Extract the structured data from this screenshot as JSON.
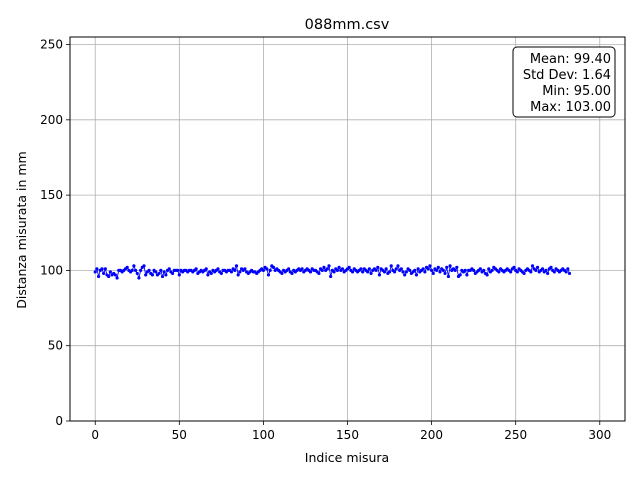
{
  "chart_data": {
    "type": "scatter",
    "title": "088mm.csv",
    "xlabel": "Indice misura",
    "ylabel": "Distanza misurata in mm",
    "xlim": [
      -15,
      315
    ],
    "ylim": [
      0,
      255
    ],
    "xticks": [
      0,
      50,
      100,
      150,
      200,
      250,
      300
    ],
    "yticks": [
      0,
      50,
      100,
      150,
      200,
      250
    ],
    "grid": true,
    "marker_color": "#0000ff",
    "line_color": "#0000ff",
    "stats_box": {
      "position": "top-right",
      "lines": [
        "Mean: 99.40",
        "Std Dev: 1.64",
        "Min: 95.00",
        "Max: 103.00"
      ]
    },
    "series": [
      {
        "x_start": 0,
        "x_step": 1,
        "values": [
          99,
          101,
          96,
          100,
          101,
          98,
          101,
          97,
          96,
          99,
          97,
          98,
          97,
          95,
          100,
          100,
          99,
          100,
          101,
          102,
          100,
          99,
          100,
          103,
          100,
          98,
          95,
          100,
          102,
          103,
          97,
          99,
          100,
          98,
          97,
          100,
          99,
          97,
          98,
          100,
          96,
          99,
          97,
          100,
          101,
          99,
          98,
          100,
          100,
          100,
          97,
          100,
          99,
          100,
          100,
          99,
          100,
          100,
          99,
          100,
          101,
          98,
          99,
          100,
          99,
          100,
          101,
          97,
          99,
          98,
          100,
          99,
          100,
          101,
          99,
          98,
          100,
          100,
          99,
          100,
          100,
          99,
          101,
          100,
          103,
          97,
          99,
          101,
          100,
          101,
          99,
          98,
          99,
          100,
          99,
          99,
          98,
          99,
          100,
          101,
          100,
          102,
          101,
          97,
          100,
          103,
          102,
          100,
          101,
          100,
          99,
          98,
          100,
          99,
          100,
          101,
          99,
          98,
          100,
          99,
          100,
          101,
          100,
          101,
          99,
          100,
          101,
          100,
          99,
          101,
          100,
          100,
          99,
          98,
          101,
          100,
          102,
          100,
          101,
          103,
          96,
          100,
          99,
          101,
          100,
          102,
          100,
          101,
          99,
          100,
          101,
          102,
          100,
          99,
          101,
          100,
          99,
          100,
          101,
          99,
          101,
          100,
          99,
          101,
          98,
          100,
          101,
          100,
          102,
          97,
          101,
          100,
          99,
          101,
          98,
          99,
          103,
          100,
          99,
          101,
          103,
          100,
          101,
          99,
          97,
          99,
          101,
          100,
          98,
          99,
          100,
          97,
          101,
          99,
          100,
          101,
          99,
          102,
          101,
          103,
          100,
          98,
          101,
          100,
          102,
          99,
          101,
          100,
          98,
          102,
          96,
          103,
          100,
          101,
          100,
          102,
          96,
          97,
          100,
          99,
          100,
          97,
          100,
          100,
          101,
          100,
          98,
          99,
          100,
          101,
          99,
          100,
          98,
          97,
          101,
          99,
          100,
          102,
          101,
          100,
          99,
          101,
          100,
          99,
          100,
          101,
          100,
          99,
          101,
          102,
          100,
          99,
          101,
          100,
          99,
          98,
          100,
          101,
          100,
          99,
          103,
          101,
          100,
          102,
          99,
          100,
          101,
          99,
          100,
          98,
          101,
          102,
          100,
          99,
          101,
          100,
          99,
          100,
          101,
          100,
          99,
          101,
          98
        ]
      }
    ]
  }
}
